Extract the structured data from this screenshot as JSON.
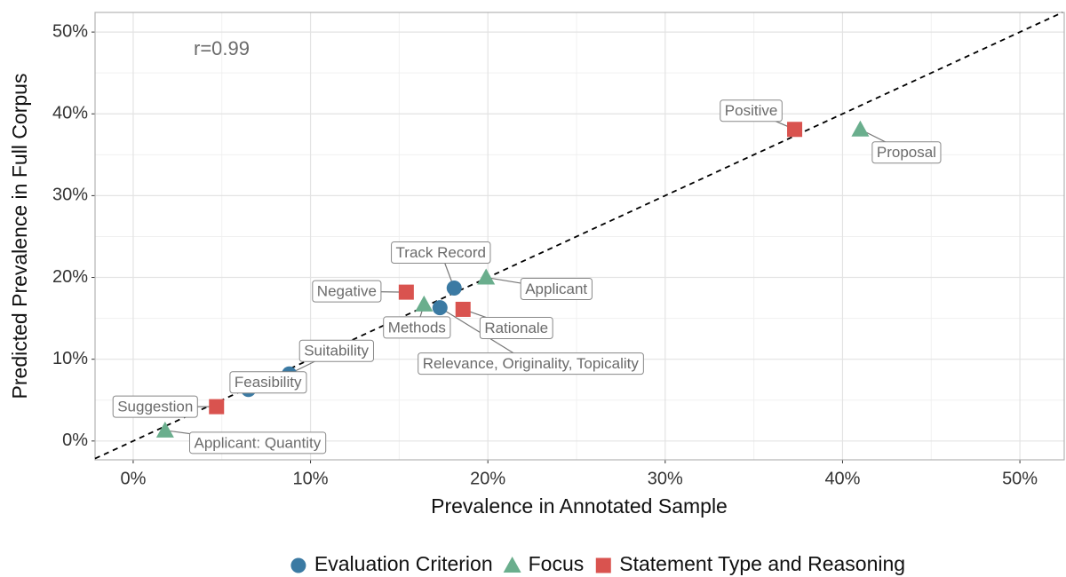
{
  "chart_data": {
    "type": "scatter",
    "x_label": "Prevalence in Annotated Sample",
    "y_label": "Predicted Prevalence in Full Corpus",
    "annotation": "r=0.99",
    "xlim": [
      -2.15,
      52.5
    ],
    "ylim": [
      -2.3,
      52.4
    ],
    "xticks": [
      {
        "value": 0,
        "label": "0%"
      },
      {
        "value": 10,
        "label": "10%"
      },
      {
        "value": 20,
        "label": "20%"
      },
      {
        "value": 30,
        "label": "30%"
      },
      {
        "value": 40,
        "label": "40%"
      },
      {
        "value": 50,
        "label": "50%"
      }
    ],
    "yticks": [
      {
        "value": 0,
        "label": "0%"
      },
      {
        "value": 10,
        "label": "10%"
      },
      {
        "value": 20,
        "label": "20%"
      },
      {
        "value": 30,
        "label": "30%"
      },
      {
        "value": 40,
        "label": "40%"
      },
      {
        "value": 50,
        "label": "50%"
      }
    ],
    "grid": true,
    "legend": "bottom",
    "series": [
      {
        "name": "Evaluation Criterion",
        "color": "#3b7aa3",
        "marker": "circle",
        "labels": [
          "Track Record",
          "Relevance, Originality, Topicality",
          "Suitability",
          "Feasibility"
        ],
        "x": [
          18.1,
          17.3,
          8.8,
          6.5
        ],
        "values": [
          18.7,
          16.3,
          8.2,
          6.3
        ]
      },
      {
        "name": "Focus",
        "color": "#6aae8d",
        "marker": "triangle",
        "labels": [
          "Applicant",
          "Methods",
          "Proposal",
          "Applicant: Quantity"
        ],
        "x": [
          19.9,
          16.4,
          41.0,
          1.8
        ],
        "values": [
          20.0,
          16.7,
          38.1,
          1.3
        ]
      },
      {
        "name": "Statement Type and Reasoning",
        "color": "#d9534f",
        "marker": "square",
        "labels": [
          "Positive",
          "Negative",
          "Rationale",
          "Suggestion"
        ],
        "x": [
          37.3,
          15.4,
          18.6,
          4.7
        ],
        "values": [
          38.1,
          18.2,
          16.1,
          4.2
        ]
      }
    ]
  }
}
